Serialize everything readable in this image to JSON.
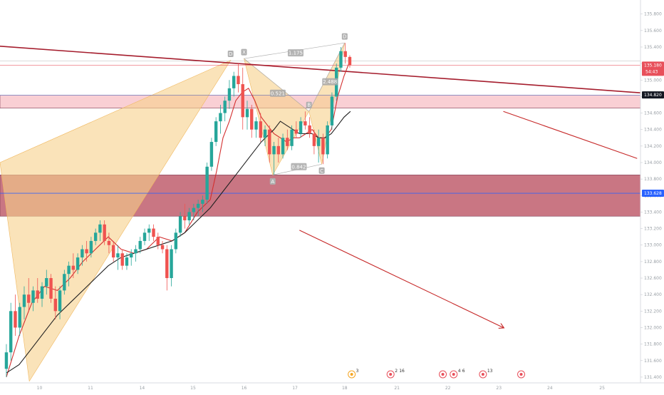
{
  "chart_data": {
    "type": "candlestick",
    "y_axis": {
      "ticks": [
        131.4,
        131.6,
        131.8,
        132.0,
        132.2,
        132.4,
        132.6,
        132.8,
        133.0,
        133.2,
        133.4,
        133.6,
        133.8,
        134.0,
        134.2,
        134.4,
        134.6,
        134.8,
        135.0,
        135.2,
        135.4,
        135.6,
        135.8
      ],
      "tick_labels": [
        "131.400",
        "131.600",
        "131.800",
        "132.000",
        "132.200",
        "132.400",
        "132.600",
        "132.800",
        "133.000",
        "133.200",
        "133.400",
        "133.600",
        "133.800",
        "134.000",
        "134.200",
        "134.400",
        "134.600",
        "134.800",
        "135.000",
        "135.200",
        "135.400",
        "135.600",
        "135.800"
      ],
      "range": [
        131.33,
        135.97
      ],
      "position": "right"
    },
    "x_axis": {
      "tick_labels": [
        "10",
        "11",
        "14",
        "15",
        "16",
        "17",
        "18",
        "21",
        "22",
        "23",
        "24",
        "25"
      ],
      "range": [
        0,
        105
      ]
    },
    "price_badges": [
      {
        "name": "last-price",
        "value": 135.18,
        "label": "135.180",
        "sublabel": "54:43",
        "color": "#e8505b"
      },
      {
        "name": "trendline-price",
        "value": 134.82,
        "label": "134.820",
        "color": "#131722"
      },
      {
        "name": "level-price",
        "value": 133.628,
        "label": "133.628",
        "color": "#2962ff"
      }
    ],
    "zones": [
      {
        "name": "upper-resistance-zone",
        "y_top": 134.815,
        "y_bottom": 134.66,
        "color": "#f4a7b0"
      },
      {
        "name": "lower-support-zone",
        "y_top": 133.85,
        "y_bottom": 133.35,
        "color": "#b7485a"
      }
    ],
    "horizontal_lines": [
      {
        "name": "blue-level",
        "value": 133.628,
        "color": "#2962ff"
      },
      {
        "name": "last-price-line",
        "value": 135.18,
        "color": "#e8505b"
      },
      {
        "name": "zone-top-line",
        "value": 134.815,
        "color": "#5c6bc0"
      },
      {
        "name": "gray-line",
        "value": 135.23,
        "color": "#9e9e9e"
      }
    ],
    "trendlines": [
      {
        "name": "resistance-trendline",
        "x1": 0,
        "y1": 135.41,
        "x2": 105,
        "y2": 134.82,
        "color": "#a51d2d"
      },
      {
        "name": "arrow-upper",
        "x1": 79,
        "y1": 134.62,
        "x2": 100,
        "y2": 134.05,
        "color": "#c62828"
      },
      {
        "name": "arrow-lower",
        "x1": 47,
        "y1": 133.18,
        "x2": 79,
        "y2": 132.0,
        "color": "#c62828"
      }
    ],
    "harmonic_pattern": {
      "fill_color": "#f7d08a",
      "points": [
        {
          "label": "D",
          "x": 36.2,
          "y": 135.24
        },
        {
          "label": "X",
          "x": 38.3,
          "y": 135.26
        },
        {
          "label": "A",
          "x": 42.8,
          "y": 133.85
        },
        {
          "label": "B",
          "x": 48.5,
          "y": 134.62
        },
        {
          "label": "C",
          "x": 50.5,
          "y": 133.98
        },
        {
          "label": "D",
          "x": 54.1,
          "y": 135.45
        }
      ],
      "ratios": [
        {
          "label": "1.175",
          "x": 46.4,
          "y": 135.33
        },
        {
          "label": "0.521",
          "x": 43.6,
          "y": 134.84
        },
        {
          "label": "2.488",
          "x": 51.8,
          "y": 134.98
        },
        {
          "label": "0.842",
          "x": 46.9,
          "y": 133.95
        }
      ],
      "wedge_left_apex_x": 36.2,
      "wedge_left_apex_y": 135.24,
      "wedge_left_upper": {
        "x": 0,
        "y": 134.0
      },
      "wedge_left_lower": {
        "x": 4.6,
        "y": 131.35
      }
    },
    "moving_averages": [
      {
        "name": "fast-ma",
        "color": "#d32f2f",
        "points": [
          [
            1,
            131.4
          ],
          [
            3,
            131.9
          ],
          [
            5,
            132.3
          ],
          [
            7,
            132.5
          ],
          [
            9,
            132.45
          ],
          [
            11,
            132.6
          ],
          [
            13,
            132.8
          ],
          [
            15,
            132.95
          ],
          [
            17,
            133.1
          ],
          [
            19,
            132.95
          ],
          [
            21,
            132.9
          ],
          [
            23,
            132.95
          ],
          [
            25,
            133.1
          ],
          [
            27,
            133.05
          ],
          [
            29,
            133.15
          ],
          [
            31,
            133.4
          ],
          [
            33,
            133.55
          ],
          [
            34,
            133.9
          ],
          [
            35,
            134.3
          ],
          [
            36,
            134.5
          ],
          [
            37,
            134.75
          ],
          [
            38,
            134.85
          ],
          [
            39,
            134.9
          ],
          [
            40,
            134.75
          ],
          [
            41,
            134.55
          ],
          [
            42,
            134.45
          ],
          [
            43,
            134.35
          ],
          [
            44,
            134.3
          ],
          [
            45,
            134.25
          ],
          [
            46,
            134.3
          ],
          [
            47,
            134.3
          ],
          [
            48,
            134.35
          ],
          [
            49,
            134.4
          ],
          [
            50,
            134.3
          ],
          [
            51,
            134.3
          ],
          [
            52,
            134.4
          ],
          [
            53,
            134.8
          ],
          [
            54,
            135.05
          ],
          [
            55,
            135.25
          ]
        ]
      },
      {
        "name": "slow-ma",
        "color": "#212121",
        "points": [
          [
            1,
            131.45
          ],
          [
            3,
            131.55
          ],
          [
            5,
            131.75
          ],
          [
            7,
            131.95
          ],
          [
            9,
            132.15
          ],
          [
            11,
            132.3
          ],
          [
            13,
            132.45
          ],
          [
            15,
            132.6
          ],
          [
            17,
            132.75
          ],
          [
            19,
            132.85
          ],
          [
            21,
            132.9
          ],
          [
            23,
            132.95
          ],
          [
            25,
            133.0
          ],
          [
            27,
            133.05
          ],
          [
            29,
            133.15
          ],
          [
            31,
            133.3
          ],
          [
            33,
            133.45
          ],
          [
            35,
            133.65
          ],
          [
            37,
            133.85
          ],
          [
            39,
            134.05
          ],
          [
            41,
            134.25
          ],
          [
            43,
            134.4
          ],
          [
            44,
            134.5
          ],
          [
            45,
            134.45
          ],
          [
            46,
            134.4
          ],
          [
            47,
            134.35
          ],
          [
            48,
            134.35
          ],
          [
            49,
            134.35
          ],
          [
            50,
            134.3
          ],
          [
            51,
            134.3
          ],
          [
            52,
            134.35
          ],
          [
            53,
            134.45
          ],
          [
            54,
            134.55
          ],
          [
            55,
            134.62
          ]
        ]
      }
    ],
    "candles": [
      [
        1,
        131.5,
        131.8,
        131.4,
        131.7
      ],
      [
        1.7,
        131.7,
        132.3,
        131.6,
        132.2
      ],
      [
        2.4,
        132.2,
        132.4,
        131.9,
        132.0
      ],
      [
        3.1,
        132.0,
        132.3,
        131.9,
        132.25
      ],
      [
        3.8,
        132.25,
        132.5,
        132.1,
        132.4
      ],
      [
        4.5,
        132.4,
        132.6,
        132.2,
        132.3
      ],
      [
        5.2,
        132.3,
        132.5,
        132.2,
        132.45
      ],
      [
        5.9,
        132.45,
        132.6,
        132.3,
        132.35
      ],
      [
        6.6,
        132.35,
        132.55,
        132.25,
        132.5
      ],
      [
        7.3,
        132.5,
        132.7,
        132.4,
        132.6
      ],
      [
        8,
        132.6,
        132.65,
        132.3,
        132.35
      ],
      [
        8.7,
        132.35,
        132.5,
        132.1,
        132.2
      ],
      [
        9.4,
        132.2,
        132.5,
        132.1,
        132.45
      ],
      [
        10.1,
        132.45,
        132.7,
        132.4,
        132.65
      ],
      [
        10.8,
        132.65,
        132.8,
        132.5,
        132.75
      ],
      [
        11.5,
        132.75,
        132.9,
        132.6,
        132.7
      ],
      [
        12.2,
        132.7,
        132.9,
        132.65,
        132.85
      ],
      [
        12.9,
        132.85,
        133.0,
        132.75,
        132.95
      ],
      [
        13.6,
        132.95,
        133.05,
        132.8,
        132.9
      ],
      [
        14.3,
        132.9,
        133.1,
        132.85,
        133.05
      ],
      [
        15,
        133.05,
        133.2,
        133.0,
        133.15
      ],
      [
        15.7,
        133.15,
        133.3,
        133.05,
        133.25
      ],
      [
        16.4,
        133.25,
        133.3,
        133.0,
        133.05
      ],
      [
        17.1,
        133.05,
        133.15,
        132.9,
        133.0
      ],
      [
        17.8,
        133.0,
        133.05,
        132.8,
        132.85
      ],
      [
        18.5,
        132.85,
        133.0,
        132.7,
        132.9
      ],
      [
        19.2,
        132.9,
        132.95,
        132.7,
        132.75
      ],
      [
        19.9,
        132.75,
        132.9,
        132.7,
        132.85
      ],
      [
        20.6,
        132.85,
        132.95,
        132.75,
        132.9
      ],
      [
        21.3,
        132.9,
        133.0,
        132.8,
        132.95
      ],
      [
        22,
        132.95,
        133.1,
        132.9,
        133.05
      ],
      [
        22.7,
        133.05,
        133.2,
        133.0,
        133.15
      ],
      [
        23.4,
        133.15,
        133.25,
        133.05,
        133.2
      ],
      [
        24.1,
        133.2,
        133.25,
        133.05,
        133.1
      ],
      [
        24.8,
        133.1,
        133.15,
        132.95,
        133.0
      ],
      [
        25.5,
        133.0,
        133.05,
        132.9,
        132.95
      ],
      [
        26.2,
        132.95,
        133.0,
        132.45,
        132.6
      ],
      [
        26.9,
        132.6,
        133.0,
        132.5,
        132.95
      ],
      [
        27.6,
        132.95,
        133.2,
        132.9,
        133.15
      ],
      [
        28.3,
        133.15,
        133.4,
        133.1,
        133.35
      ],
      [
        29,
        133.35,
        133.5,
        133.2,
        133.3
      ],
      [
        29.7,
        133.3,
        133.45,
        133.25,
        133.4
      ],
      [
        30.4,
        133.4,
        133.5,
        133.3,
        133.45
      ],
      [
        31.1,
        133.45,
        133.55,
        133.35,
        133.5
      ],
      [
        31.8,
        133.5,
        133.6,
        133.4,
        133.55
      ],
      [
        32.5,
        133.55,
        134.0,
        133.5,
        133.95
      ],
      [
        33.2,
        133.95,
        134.3,
        133.9,
        134.25
      ],
      [
        33.9,
        134.25,
        134.55,
        134.2,
        134.5
      ],
      [
        34.6,
        134.5,
        134.7,
        134.35,
        134.6
      ],
      [
        35.3,
        134.6,
        134.8,
        134.5,
        134.75
      ],
      [
        36,
        134.75,
        135.0,
        134.65,
        134.9
      ],
      [
        36.7,
        134.9,
        135.1,
        134.8,
        135.05
      ],
      [
        37.4,
        135.05,
        135.2,
        134.85,
        134.95
      ],
      [
        38.1,
        134.95,
        135.15,
        134.4,
        134.55
      ],
      [
        38.8,
        134.55,
        134.75,
        134.4,
        134.65
      ],
      [
        39.5,
        134.65,
        134.7,
        134.3,
        134.4
      ],
      [
        40.2,
        134.4,
        134.55,
        134.3,
        134.5
      ],
      [
        40.9,
        134.5,
        134.6,
        134.25,
        134.3
      ],
      [
        41.6,
        134.3,
        134.45,
        134.2,
        134.4
      ],
      [
        42.3,
        134.4,
        134.45,
        134.0,
        134.1
      ],
      [
        43,
        134.1,
        134.25,
        133.85,
        134.2
      ],
      [
        43.7,
        134.2,
        134.3,
        134.0,
        134.1
      ],
      [
        44.4,
        134.1,
        134.35,
        134.05,
        134.3
      ],
      [
        45.1,
        134.3,
        134.4,
        134.15,
        134.2
      ],
      [
        45.8,
        134.2,
        134.45,
        134.15,
        134.4
      ],
      [
        46.5,
        134.4,
        134.5,
        134.3,
        134.35
      ],
      [
        47.2,
        134.35,
        134.55,
        134.3,
        134.5
      ],
      [
        47.9,
        134.5,
        134.62,
        134.4,
        134.45
      ],
      [
        48.6,
        134.45,
        134.55,
        134.3,
        134.35
      ],
      [
        49.3,
        134.35,
        134.4,
        134.1,
        134.2
      ],
      [
        50,
        134.2,
        134.4,
        134.0,
        134.3
      ],
      [
        50.7,
        134.3,
        134.35,
        133.98,
        134.1
      ],
      [
        51.4,
        134.1,
        134.5,
        134.05,
        134.45
      ],
      [
        52.1,
        134.45,
        134.85,
        134.4,
        134.8
      ],
      [
        52.8,
        134.8,
        135.2,
        134.75,
        135.15
      ],
      [
        53.5,
        135.15,
        135.4,
        135.1,
        135.35
      ],
      [
        54.2,
        135.35,
        135.45,
        135.2,
        135.28
      ],
      [
        54.9,
        135.28,
        135.3,
        135.15,
        135.18
      ]
    ]
  },
  "events": [
    {
      "icon": "earnings-icon",
      "count": "3",
      "x": 55.2
    },
    {
      "icon": "dividend-icon",
      "count": "2",
      "count2": "16",
      "x": 61.3
    },
    {
      "icon": "event-icon",
      "count": "",
      "x": 69.5
    },
    {
      "icon": "dividend-icon",
      "count": "4",
      "count2": "6",
      "x": 71.2
    },
    {
      "icon": "event-icon",
      "count": "13",
      "x": 75.8
    },
    {
      "icon": "dividend-icon",
      "count": "",
      "x": 81.8
    }
  ]
}
